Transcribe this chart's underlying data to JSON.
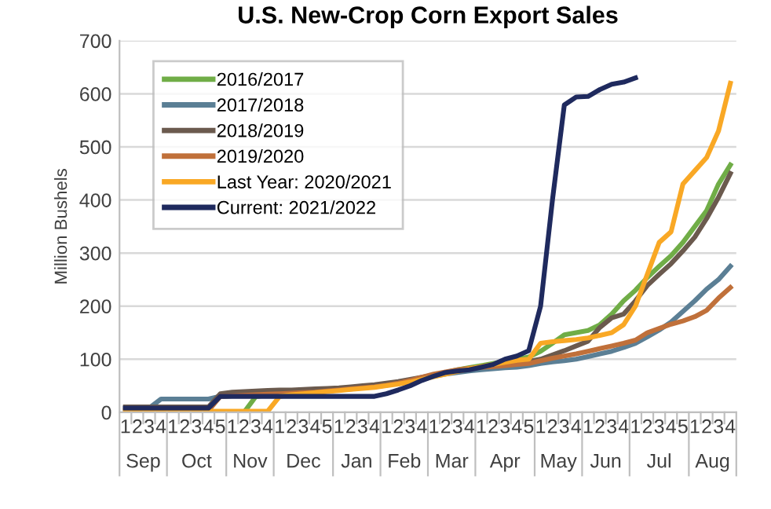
{
  "chart_data": {
    "type": "line",
    "title": "U.S. New-Crop Corn Export Sales",
    "ylabel": "Million Bushels",
    "categories": [
      "1",
      "2",
      "3",
      "4",
      "1",
      "2",
      "3",
      "4",
      "5",
      "1",
      "2",
      "3",
      "4",
      "1",
      "2",
      "3",
      "4",
      "5",
      "1",
      "2",
      "3",
      "4",
      "1",
      "2",
      "3",
      "4",
      "1",
      "2",
      "3",
      "4",
      "1",
      "2",
      "3",
      "4",
      "5",
      "1",
      "2",
      "3",
      "4",
      "1",
      "2",
      "3",
      "4",
      "1",
      "2",
      "3",
      "4",
      "5",
      "1",
      "2",
      "3",
      "4"
    ],
    "annotations": [
      "Sep",
      "Oct",
      "Nov",
      "Dec",
      "Jan",
      "Feb",
      "Mar",
      "Apr",
      "May",
      "Jun",
      "Jul",
      "Aug"
    ],
    "ylim": [
      0,
      700
    ],
    "yticks": [
      0,
      100,
      200,
      300,
      400,
      500,
      600,
      700
    ],
    "grid": "y",
    "legend": "top left",
    "marker": "none",
    "line_style": "solid",
    "series": [
      {
        "name": "2016/2017",
        "color": "#70ad47",
        "values": [
          null,
          null,
          null,
          null,
          null,
          null,
          null,
          null,
          null,
          null,
          0,
          30,
          32,
          34,
          36,
          38,
          40,
          42,
          44,
          46,
          48,
          50,
          52,
          55,
          60,
          65,
          70,
          75,
          80,
          84,
          88,
          92,
          96,
          100,
          104,
          115,
          130,
          146,
          150,
          154,
          165,
          185,
          210,
          230,
          254,
          275,
          295,
          320,
          350,
          380,
          430,
          466
        ]
      },
      {
        "name": "2017/2018",
        "color": "#5b7f95",
        "values": [
          8,
          8,
          8,
          25,
          25,
          25,
          25,
          25,
          30,
          31,
          32,
          33,
          34,
          35,
          36,
          37,
          39,
          41,
          43,
          45,
          47,
          49,
          52,
          56,
          60,
          64,
          68,
          72,
          75,
          78,
          80,
          82,
          84,
          85,
          88,
          92,
          95,
          97,
          100,
          105,
          110,
          115,
          122,
          130,
          142,
          155,
          170,
          190,
          210,
          232,
          250,
          275
        ]
      },
      {
        "name": "2018/2019",
        "color": "#6b5a4e",
        "values": [
          10,
          10,
          10,
          10,
          10,
          10,
          10,
          10,
          35,
          38,
          39,
          40,
          41,
          42,
          42,
          43,
          44,
          45,
          46,
          48,
          50,
          52,
          55,
          58,
          62,
          66,
          70,
          74,
          78,
          82,
          85,
          88,
          90,
          93,
          96,
          100,
          108,
          116,
          125,
          134,
          160,
          178,
          185,
          210,
          239,
          260,
          280,
          304,
          330,
          365,
          405,
          450
        ]
      },
      {
        "name": "2019/2020",
        "color": "#c0703a",
        "values": [
          3,
          3,
          3,
          3,
          3,
          3,
          3,
          3,
          30,
          31,
          32,
          33,
          34,
          35,
          36,
          37,
          38,
          40,
          42,
          44,
          46,
          48,
          51,
          55,
          60,
          66,
          72,
          76,
          80,
          83,
          85,
          86,
          88,
          90,
          92,
          97,
          102,
          106,
          110,
          115,
          120,
          125,
          130,
          136,
          150,
          158,
          166,
          172,
          180,
          192,
          215,
          235
        ]
      },
      {
        "name": "Last Year: 2020/2021",
        "color": "#f9a825",
        "values": [
          2,
          2,
          2,
          2,
          2,
          2,
          2,
          2,
          2,
          2,
          2,
          2,
          2,
          30,
          33,
          35,
          37,
          39,
          41,
          43,
          45,
          47,
          50,
          53,
          57,
          62,
          67,
          72,
          77,
          82,
          86,
          90,
          94,
          98,
          100,
          130,
          133,
          135,
          137,
          140,
          145,
          150,
          165,
          200,
          260,
          320,
          340,
          430,
          455,
          480,
          530,
          620
        ]
      },
      {
        "name": "Current: 2021/2022",
        "color": "#1f2a5e",
        "values": [
          8,
          8,
          8,
          8,
          8,
          8,
          8,
          8,
          30,
          30,
          30,
          30,
          30,
          30,
          30,
          30,
          30,
          30,
          30,
          30,
          30,
          30,
          35,
          42,
          50,
          60,
          68,
          75,
          78,
          80,
          85,
          90,
          100,
          106,
          116,
          200,
          400,
          579,
          594,
          595,
          608,
          618,
          622,
          630,
          null,
          null,
          null,
          null,
          null,
          null,
          null,
          null
        ]
      }
    ]
  }
}
